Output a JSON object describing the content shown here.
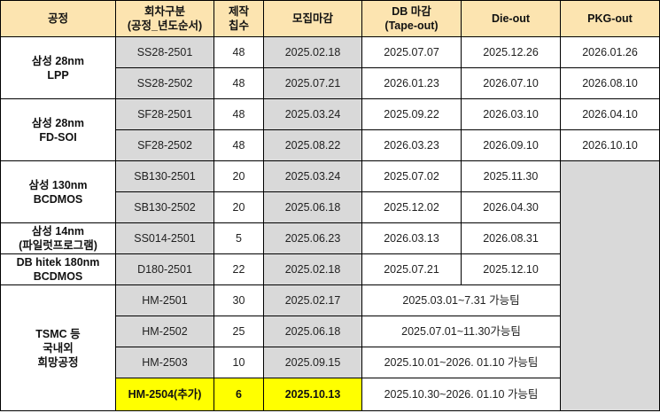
{
  "colors": {
    "header_bg": "#FCE4B0",
    "gray_cell": "#D9D9D9",
    "highlight": "#FFFF00"
  },
  "headers": [
    "공정",
    "회차구분\n(공정_년도순서)",
    "제작\n칩수",
    "모집마감",
    "DB 마감\n(Tape-out)",
    "Die-out",
    "PKG-out"
  ],
  "groups": [
    {
      "name": "삼성 28nm\nLPP",
      "rows": [
        {
          "code": "SS28-2501",
          "chips": "48",
          "recruit": "2025.02.18",
          "db": "2025.07.07",
          "die": "2025.12.26",
          "pkg": "2026.01.26"
        },
        {
          "code": "SS28-2502",
          "chips": "48",
          "recruit": "2025.07.21",
          "db": "2026.01.23",
          "die": "2026.07.10",
          "pkg": "2026.08.10"
        }
      ]
    },
    {
      "name": "삼성 28nm\nFD-SOI",
      "rows": [
        {
          "code": "SF28-2501",
          "chips": "48",
          "recruit": "2025.03.24",
          "db": "2025.09.22",
          "die": "2026.03.10",
          "pkg": "2026.04.10"
        },
        {
          "code": "SF28-2502",
          "chips": "48",
          "recruit": "2025.08.22",
          "db": "2026.03.23",
          "die": "2026.09.10",
          "pkg": "2026.10.10"
        }
      ]
    },
    {
      "name": "삼성 130nm\nBCDMOS",
      "rows": [
        {
          "code": "SB130-2501",
          "chips": "20",
          "recruit": "2025.03.24",
          "db": "2025.07.02",
          "die": "2025.11.30"
        },
        {
          "code": "SB130-2502",
          "chips": "20",
          "recruit": "2025.06.18",
          "db": "2025.12.02",
          "die": "2026.04.30"
        }
      ]
    },
    {
      "name": "삼성 14nm\n(파일럿프로그램)",
      "rows": [
        {
          "code": "SS014-2501",
          "chips": "5",
          "recruit": "2025.06.23",
          "db": "2026.03.13",
          "die": "2026.08.31"
        }
      ]
    },
    {
      "name": "DB hitek 180nm\nBCDMOS",
      "rows": [
        {
          "code": "D180-2501",
          "chips": "22",
          "recruit": "2025.02.18",
          "db": "2025.07.21",
          "die": "2025.12.10"
        }
      ]
    },
    {
      "name": "TSMC 등\n국내외\n희망공정",
      "rows": [
        {
          "code": "HM-2501",
          "chips": "30",
          "recruit": "2025.02.17",
          "period": "2025.03.01~7.31 가능팀"
        },
        {
          "code": "HM-2502",
          "chips": "25",
          "recruit": "2025.06.18",
          "period": "2025.07.01~11.30가능팀"
        },
        {
          "code": "HM-2503",
          "chips": "10",
          "recruit": "2025.09.15",
          "period": "2025.10.01~2026. 01.10 가능팀"
        },
        {
          "code": "HM-2504(추가)",
          "chips": "6",
          "recruit": "2025.10.13",
          "period": "2025.10.30~2026. 01.10 가능팀",
          "highlight": true
        }
      ]
    }
  ]
}
